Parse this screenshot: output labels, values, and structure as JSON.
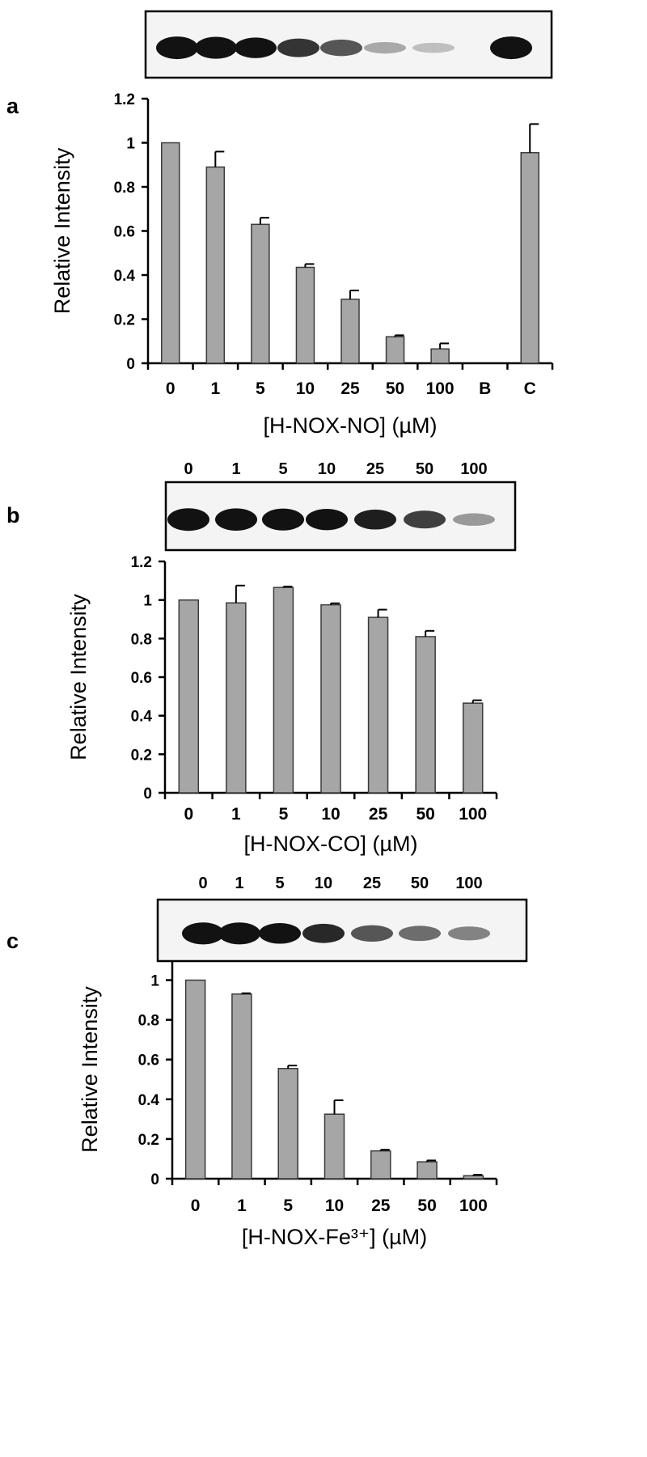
{
  "colors": {
    "bar_fill": "#a6a6a6",
    "bar_stroke": "#3a3a3a",
    "axis": "#000000",
    "band": "#121212"
  },
  "panels": [
    {
      "letter": "a",
      "blot_lanes": [
        "0",
        "1",
        "5",
        "10",
        "25",
        "50",
        "100",
        "B",
        "C"
      ],
      "blot_band_intensity": [
        1.0,
        0.95,
        0.85,
        0.7,
        0.55,
        0.18,
        0.08,
        0.0,
        1.0
      ],
      "chart_data": {
        "type": "bar",
        "categories": [
          "0",
          "1",
          "5",
          "10",
          "25",
          "50",
          "100",
          "B",
          "C"
        ],
        "values": [
          1.0,
          0.89,
          0.63,
          0.435,
          0.29,
          0.12,
          0.065,
          0,
          0.955
        ],
        "errors": [
          0,
          0.07,
          0.03,
          0.015,
          0.04,
          0.007,
          0.025,
          0,
          0.13
        ],
        "ylabel": "Relative Intensity",
        "xlabel": "[H-NOX-NO] (µM)",
        "yticks": [
          "0",
          "0.2",
          "0.4",
          "0.6",
          "0.8",
          "1",
          "1.2"
        ],
        "ylim": [
          0,
          1.2
        ]
      }
    },
    {
      "letter": "b",
      "blot_lanes": [
        "0",
        "1",
        "5",
        "10",
        "25",
        "50",
        "100"
      ],
      "blot_band_intensity": [
        1.0,
        0.98,
        0.95,
        0.9,
        0.8,
        0.65,
        0.25
      ],
      "chart_data": {
        "type": "bar",
        "categories": [
          "0",
          "1",
          "5",
          "10",
          "25",
          "50",
          "100"
        ],
        "values": [
          1.0,
          0.985,
          1.065,
          0.975,
          0.91,
          0.81,
          0.465
        ],
        "errors": [
          0,
          0.09,
          0.005,
          0.008,
          0.04,
          0.03,
          0.015
        ],
        "ylabel": "Relative Intensity",
        "xlabel": "[H-NOX-CO] (µM)",
        "yticks": [
          "0",
          "0.2",
          "0.4",
          "0.6",
          "0.8",
          "1",
          "1.2"
        ],
        "ylim": [
          0,
          1.2
        ]
      }
    },
    {
      "letter": "c",
      "blot_lanes": [
        "0",
        "1",
        "5",
        "10",
        "25",
        "50",
        "100"
      ],
      "blot_band_intensity": [
        0.95,
        0.95,
        0.85,
        0.75,
        0.55,
        0.45,
        0.35
      ],
      "chart_data": {
        "type": "bar",
        "categories": [
          "0",
          "1",
          "5",
          "10",
          "25",
          "50",
          "100"
        ],
        "values": [
          1.0,
          0.93,
          0.555,
          0.325,
          0.14,
          0.085,
          0.015
        ],
        "errors": [
          0,
          0.004,
          0.015,
          0.07,
          0.006,
          0.007,
          0.005
        ],
        "ylabel": "Relative Intensity",
        "xlabel": "[H-NOX-Fe³⁺] (µM)",
        "yticks": [
          "0",
          "0.2",
          "0.4",
          "0.6",
          "0.8",
          "1"
        ],
        "ylim": [
          0,
          1.1
        ]
      }
    }
  ]
}
